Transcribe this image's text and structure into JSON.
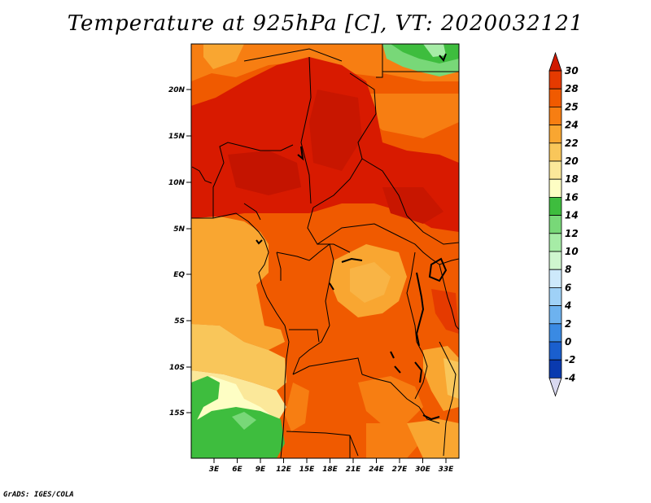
{
  "title": "Temperature at 925hPa [C], VT: 2020032121",
  "credit": "GrADS: IGES/COLA",
  "map": {
    "x_ticks": [
      "3E",
      "6E",
      "9E",
      "12E",
      "15E",
      "18E",
      "21E",
      "24E",
      "27E",
      "30E",
      "33E"
    ],
    "y_ticks": [
      "20N",
      "15N",
      "10N",
      "5N",
      "EQ",
      "5S",
      "10S",
      "15S"
    ]
  },
  "colorbar": {
    "labels": [
      "30",
      "28",
      "25",
      "24",
      "22",
      "20",
      "18",
      "16",
      "14",
      "12",
      "10",
      "8",
      "6",
      "4",
      "2",
      "0",
      "-2",
      "-4"
    ],
    "colors": [
      "#d11a00",
      "#e53a00",
      "#f05a00",
      "#f77e12",
      "#f9a631",
      "#f9c65a",
      "#fbe89a",
      "#fefec4",
      "#3ebd3e",
      "#78d878",
      "#a6eca6",
      "#cff6cf",
      "#cde9fb",
      "#9fd1f7",
      "#6db2ef",
      "#3a8ae3",
      "#1a5fce",
      "#0a3aaf",
      "#07107a"
    ]
  },
  "palette": {
    "deep_red": "#d81a00",
    "red_orange": "#e53a00",
    "orange": "#f05a00",
    "light_orange": "#f77e12",
    "amber": "#f9a631",
    "yellow_orange": "#f9c65a",
    "pale_yellow": "#fbe89a",
    "cream": "#fefec4",
    "green": "#3ebd3e",
    "light_green": "#78d878",
    "pale_green": "#a6eca6"
  }
}
